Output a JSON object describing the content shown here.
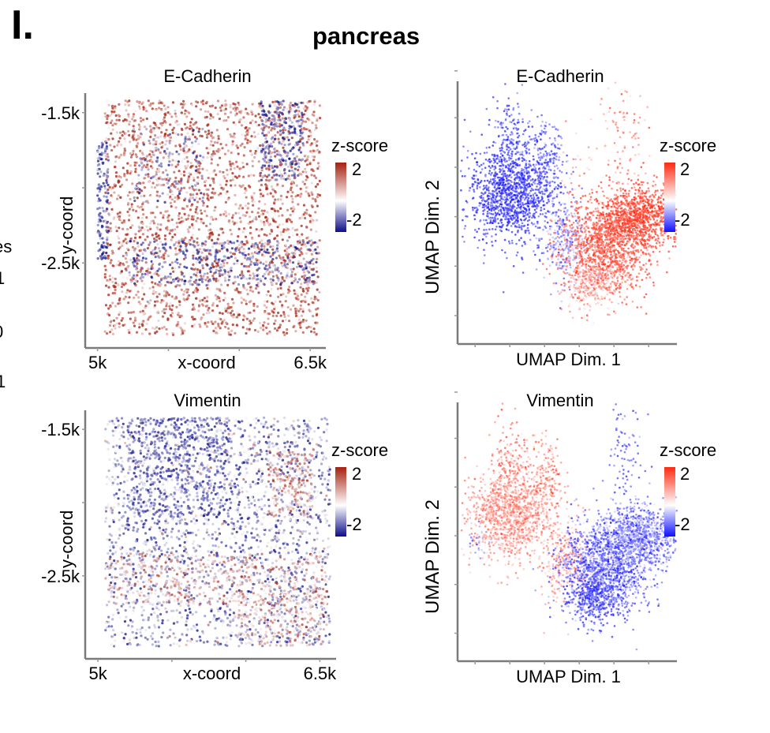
{
  "figure": {
    "panel_letter": "I.",
    "title": "pancreas",
    "cut_off_left_text": [
      "es",
      "1",
      "0",
      "1"
    ]
  },
  "colorscales": {
    "spatial": {
      "low": "#0d0d8a",
      "mid": "#ffffff",
      "high": "#a5200f"
    },
    "umap": {
      "low": "#1010ff",
      "mid": "#ffffff",
      "high": "#ff2a12"
    }
  },
  "chart_data": [
    {
      "id": "spatial-ecadherin",
      "type": "scatter",
      "title": "E-Cadherin",
      "xlabel": "x-coord",
      "ylabel": "y-coord",
      "xlim": [
        4930,
        6610
      ],
      "ylim": [
        -3050,
        -1370
      ],
      "xticks": [
        {
          "value": 5000,
          "label": "5k"
        },
        {
          "value": 5500,
          "label": ""
        },
        {
          "value": 6000,
          "label": ""
        },
        {
          "value": 6500,
          "label": "6.5k"
        }
      ],
      "yticks": [
        {
          "value": -1500,
          "label": "-1.5k"
        },
        {
          "value": -2000,
          "label": ""
        },
        {
          "value": -2500,
          "label": "-2.5k"
        }
      ],
      "colorscale": "spatial",
      "legend": {
        "title": "z-score",
        "max_label": "2",
        "min_label": "-2",
        "range": [
          -2,
          2
        ],
        "position": "right"
      },
      "point_regions": [
        {
          "xrange": [
            5050,
            6570
          ],
          "yrange": [
            -2980,
            -1420
          ],
          "n": 2600,
          "z_mean": 1.3,
          "z_sd": 0.7
        },
        {
          "xrange": [
            5000,
            5080
          ],
          "yrange": [
            -2480,
            -1700
          ],
          "n": 140,
          "z_mean": -1.4,
          "z_sd": 0.5
        },
        {
          "xrange": [
            6150,
            6450
          ],
          "yrange": [
            -1950,
            -1420
          ],
          "n": 240,
          "z_mean": -1.3,
          "z_sd": 0.6
        },
        {
          "xrange": [
            5200,
            6550
          ],
          "yrange": [
            -2650,
            -2350
          ],
          "n": 420,
          "z_mean": -1.3,
          "z_sd": 0.6
        },
        {
          "xrange": [
            5250,
            5750
          ],
          "yrange": [
            -2100,
            -1600
          ],
          "n": 120,
          "z_mean": -1.1,
          "z_sd": 0.6
        }
      ]
    },
    {
      "id": "umap-ecadherin",
      "type": "scatter",
      "title": "E-Cadherin",
      "xlabel": "UMAP Dim. 1",
      "ylabel": "UMAP Dim. 2",
      "xlim": [
        0,
        10
      ],
      "ylim": [
        0,
        10
      ],
      "xticks": [
        {
          "value": 0.7,
          "label": ""
        },
        {
          "value": 2.3,
          "label": ""
        },
        {
          "value": 3.9,
          "label": ""
        },
        {
          "value": 5.5,
          "label": ""
        },
        {
          "value": 7.1,
          "label": ""
        },
        {
          "value": 8.7,
          "label": ""
        }
      ],
      "yticks": [
        {
          "value": 1.0,
          "label": ""
        },
        {
          "value": 2.9,
          "label": ""
        },
        {
          "value": 4.8,
          "label": ""
        },
        {
          "value": 6.7,
          "label": ""
        },
        {
          "value": 8.6,
          "label": ""
        },
        {
          "value": 10.4,
          "label": ""
        }
      ],
      "colorscale": "umap",
      "legend": {
        "title": "z-score",
        "max_label": "2",
        "min_label": "-2",
        "range": [
          -2,
          2
        ],
        "position": "right"
      },
      "point_regions": [
        {
          "cx": 2.3,
          "cy": 5.6,
          "sx": 1.0,
          "sy": 0.9,
          "n": 1100,
          "z_mean": -1.7,
          "z_sd": 0.3
        },
        {
          "cx": 2.4,
          "cy": 7.2,
          "sx": 0.5,
          "sy": 1.0,
          "n": 250,
          "z_mean": -1.5,
          "z_sd": 0.4
        },
        {
          "cx": 4.0,
          "cy": 6.8,
          "sx": 0.4,
          "sy": 0.9,
          "n": 200,
          "z_mean": -1.4,
          "z_sd": 0.4
        },
        {
          "cx": 4.8,
          "cy": 3.9,
          "sx": 0.5,
          "sy": 0.8,
          "n": 300,
          "z_mean": -0.9,
          "z_sd": 0.5
        },
        {
          "cx": 6.7,
          "cy": 3.6,
          "sx": 1.0,
          "sy": 0.9,
          "n": 1300,
          "z_mean": 1.5,
          "z_sd": 0.4
        },
        {
          "cx": 8.3,
          "cy": 4.8,
          "sx": 0.9,
          "sy": 0.6,
          "n": 900,
          "z_mean": 1.8,
          "z_sd": 0.3
        },
        {
          "cx": 6.0,
          "cy": 2.3,
          "sx": 0.6,
          "sy": 0.5,
          "n": 300,
          "z_mean": 0.6,
          "z_sd": 0.5
        },
        {
          "cx": 7.6,
          "cy": 8.2,
          "sx": 0.5,
          "sy": 1.2,
          "n": 90,
          "z_mean": 1.2,
          "z_sd": 0.6
        },
        {
          "cx": 5.6,
          "cy": 7.0,
          "sx": 0.8,
          "sy": 1.0,
          "n": 40,
          "z_mean": 0.6,
          "z_sd": 0.6
        }
      ]
    },
    {
      "id": "spatial-vimentin",
      "type": "scatter",
      "title": "Vimentin",
      "xlabel": "x-coord",
      "ylabel": "y-coord",
      "xlim": [
        4930,
        6610
      ],
      "ylim": [
        -3050,
        -1370
      ],
      "xticks": [
        {
          "value": 5000,
          "label": "5k"
        },
        {
          "value": 5500,
          "label": ""
        },
        {
          "value": 6000,
          "label": ""
        },
        {
          "value": 6500,
          "label": "6.5k"
        }
      ],
      "yticks": [
        {
          "value": -1500,
          "label": "-1.5k"
        },
        {
          "value": -2000,
          "label": ""
        },
        {
          "value": -2500,
          "label": "-2.5k"
        }
      ],
      "colorscale": "spatial",
      "legend": {
        "title": "z-score",
        "max_label": "2",
        "min_label": "-2",
        "range": [
          -2,
          2
        ],
        "position": "right"
      },
      "point_regions": [
        {
          "xrange": [
            5050,
            6570
          ],
          "yrange": [
            -2980,
            -1420
          ],
          "n": 2400,
          "z_mean": -0.8,
          "z_sd": 0.8
        },
        {
          "xrange": [
            5200,
            5900
          ],
          "yrange": [
            -2100,
            -1420
          ],
          "n": 500,
          "z_mean": -1.3,
          "z_sd": 0.5
        },
        {
          "xrange": [
            6150,
            6450
          ],
          "yrange": [
            -2100,
            -1650
          ],
          "n": 200,
          "z_mean": 0.9,
          "z_sd": 0.6
        },
        {
          "xrange": [
            5050,
            6550
          ],
          "yrange": [
            -2700,
            -2350
          ],
          "n": 450,
          "z_mean": 0.8,
          "z_sd": 0.6
        },
        {
          "xrange": [
            5950,
            6550
          ],
          "yrange": [
            -2980,
            -2600
          ],
          "n": 250,
          "z_mean": 0.6,
          "z_sd": 0.6
        }
      ]
    },
    {
      "id": "umap-vimentin",
      "type": "scatter",
      "title": "Vimentin",
      "xlabel": "UMAP Dim. 1",
      "ylabel": "UMAP Dim. 2",
      "xlim": [
        0,
        10
      ],
      "ylim": [
        0,
        10
      ],
      "xticks": [
        {
          "value": 0.7,
          "label": ""
        },
        {
          "value": 2.3,
          "label": ""
        },
        {
          "value": 3.9,
          "label": ""
        },
        {
          "value": 5.5,
          "label": ""
        },
        {
          "value": 7.1,
          "label": ""
        },
        {
          "value": 8.7,
          "label": ""
        }
      ],
      "yticks": [
        {
          "value": 1.0,
          "label": ""
        },
        {
          "value": 2.9,
          "label": ""
        },
        {
          "value": 4.8,
          "label": ""
        },
        {
          "value": 6.7,
          "label": ""
        },
        {
          "value": 8.6,
          "label": ""
        },
        {
          "value": 10.4,
          "label": ""
        }
      ],
      "colorscale": "umap",
      "legend": {
        "title": "z-score",
        "max_label": "2",
        "min_label": "-2",
        "range": [
          -2,
          2
        ],
        "position": "right"
      },
      "point_regions": [
        {
          "cx": 2.3,
          "cy": 5.6,
          "sx": 1.0,
          "sy": 0.9,
          "n": 1100,
          "z_mean": 0.9,
          "z_sd": 0.4
        },
        {
          "cx": 2.4,
          "cy": 7.2,
          "sx": 0.5,
          "sy": 1.0,
          "n": 250,
          "z_mean": 1.1,
          "z_sd": 0.4
        },
        {
          "cx": 4.0,
          "cy": 6.8,
          "sx": 0.4,
          "sy": 0.9,
          "n": 200,
          "z_mean": 1.1,
          "z_sd": 0.4
        },
        {
          "cx": 4.8,
          "cy": 3.9,
          "sx": 0.5,
          "sy": 0.8,
          "n": 300,
          "z_mean": 0.8,
          "z_sd": 0.4
        },
        {
          "cx": 6.7,
          "cy": 3.6,
          "sx": 1.0,
          "sy": 0.9,
          "n": 1300,
          "z_mean": -1.3,
          "z_sd": 0.5
        },
        {
          "cx": 8.3,
          "cy": 4.8,
          "sx": 0.9,
          "sy": 0.6,
          "n": 900,
          "z_mean": -1.0,
          "z_sd": 0.6
        },
        {
          "cx": 6.0,
          "cy": 2.3,
          "sx": 0.6,
          "sy": 0.5,
          "n": 300,
          "z_mean": -1.6,
          "z_sd": 0.3
        },
        {
          "cx": 7.6,
          "cy": 8.2,
          "sx": 0.5,
          "sy": 1.2,
          "n": 90,
          "z_mean": -1.4,
          "z_sd": 0.4
        },
        {
          "cx": 0.8,
          "cy": 4.6,
          "sx": 0.3,
          "sy": 0.3,
          "n": 25,
          "z_mean": -1.0,
          "z_sd": 0.4
        }
      ]
    }
  ]
}
